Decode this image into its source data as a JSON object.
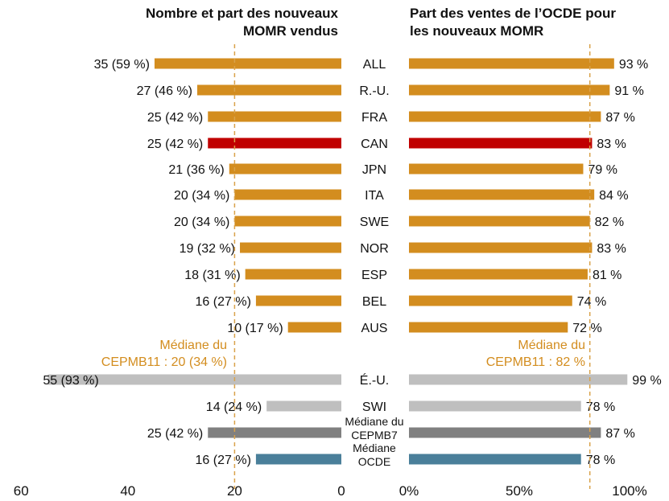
{
  "chart_data": {
    "type": "bar",
    "left_panel": {
      "title_lines": [
        "Nombre et part des nouveaux",
        "MOMR vendus"
      ],
      "xlim": [
        0,
        60
      ],
      "axis_ticks": [
        "60",
        "40",
        "20",
        "0"
      ],
      "tick_values": [
        60,
        40,
        20,
        0
      ],
      "median_value": 20,
      "median_label_lines": [
        "Médiane du",
        "CEPMB11 : 20 (34 %)"
      ]
    },
    "right_panel": {
      "title_lines": [
        "Part des ventes de l’OCDE pour",
        "les nouveaux MOMR"
      ],
      "xlim": [
        0,
        100
      ],
      "axis_ticks": [
        "0%",
        "50%",
        "100%"
      ],
      "tick_values": [
        0,
        50,
        100
      ],
      "median_value": 82,
      "median_label_lines": [
        "Médiane du",
        "CEPMB11 : 82 %"
      ]
    },
    "rows": [
      {
        "category": [
          "ALL"
        ],
        "count": 35,
        "label": "35 (59 %)",
        "share": 93,
        "share_label": "93 %",
        "group": "main"
      },
      {
        "category": [
          "R.-U."
        ],
        "count": 27,
        "label": "27 (46 %)",
        "share": 91,
        "share_label": "91 %",
        "group": "main"
      },
      {
        "category": [
          "FRA"
        ],
        "count": 25,
        "label": "25 (42 %)",
        "share": 87,
        "share_label": "87 %",
        "group": "main"
      },
      {
        "category": [
          "CAN"
        ],
        "count": 25,
        "label": "25 (42 %)",
        "share": 83,
        "share_label": "83 %",
        "group": "highlight"
      },
      {
        "category": [
          "JPN"
        ],
        "count": 21,
        "label": "21 (36 %)",
        "share": 79,
        "share_label": "79 %",
        "group": "main"
      },
      {
        "category": [
          "ITA"
        ],
        "count": 20,
        "label": "20 (34 %)",
        "share": 84,
        "share_label": "84 %",
        "group": "main"
      },
      {
        "category": [
          "SWE"
        ],
        "count": 20,
        "label": "20 (34 %)",
        "share": 82,
        "share_label": "82 %",
        "group": "main"
      },
      {
        "category": [
          "NOR"
        ],
        "count": 19,
        "label": "19 (32 %)",
        "share": 83,
        "share_label": "83 %",
        "group": "main"
      },
      {
        "category": [
          "ESP"
        ],
        "count": 18,
        "label": "18 (31 %)",
        "share": 81,
        "share_label": "81 %",
        "group": "main"
      },
      {
        "category": [
          "BEL"
        ],
        "count": 16,
        "label": "16 (27 %)",
        "share": 74,
        "share_label": "74 %",
        "group": "main"
      },
      {
        "category": [
          "AUS"
        ],
        "count": 10,
        "label": "10 (17 %)",
        "share": 72,
        "share_label": "72 %",
        "group": "main"
      },
      {
        "category": [
          "É.-U."
        ],
        "count": 55,
        "label": "55 (93 %)",
        "share": 99,
        "share_label": "99 %",
        "group": "other"
      },
      {
        "category": [
          "SWI"
        ],
        "count": 14,
        "label": "14 (24 %)",
        "share": 78,
        "share_label": "78 %",
        "group": "other"
      },
      {
        "category": [
          "Médiane du",
          "CEPMB7"
        ],
        "count": 25,
        "label": "25 (42 %)",
        "share": 87,
        "share_label": "87 %",
        "group": "median7"
      },
      {
        "category": [
          "Médiane",
          "OCDE"
        ],
        "count": 16,
        "label": "16 (27 %)",
        "share": 78,
        "share_label": "78 %",
        "group": "oecd"
      }
    ]
  },
  "colors": {
    "main": "#d38d1f",
    "highlight": "#c00000",
    "other": "#bfbfbf",
    "median7": "#808080",
    "oecd": "#4a7f9a",
    "median_line": "#d9a24a",
    "median_text": "#d38d1f",
    "text": "#111111"
  }
}
